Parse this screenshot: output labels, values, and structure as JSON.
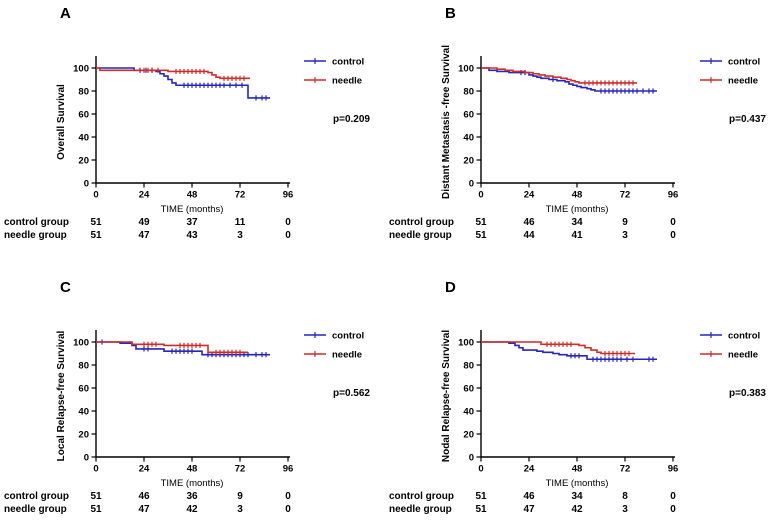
{
  "figure": {
    "background": "#ffffff",
    "colors": {
      "control": "#2626b8",
      "needle": "#cb2f2b",
      "axis": "#000000",
      "x_label_text": "#6a6a6a",
      "text": "#000000"
    }
  },
  "chart_data": [
    {
      "type": "line",
      "panel_letter": "A",
      "ylabel": "Overall Survival",
      "xlabel": "TIME (months)",
      "xlim": [
        0,
        96
      ],
      "ylim": [
        0,
        100
      ],
      "xticks": [
        0,
        24,
        48,
        72,
        96
      ],
      "yticks": [
        0,
        20,
        40,
        60,
        80,
        100
      ],
      "p_value": "p=0.209",
      "grid": false,
      "legend_position": "right",
      "legend_offset_x": 0,
      "series": [
        {
          "name": "control",
          "color_key": "control",
          "steps": [
            [
              0,
              100
            ],
            [
              19,
              98
            ],
            [
              30,
              97
            ],
            [
              32,
              95
            ],
            [
              34,
              93
            ],
            [
              36,
              90
            ],
            [
              38,
              87
            ],
            [
              40,
              85
            ],
            [
              76,
              74
            ],
            [
              87,
              74
            ]
          ],
          "censor_times": [
            22,
            25,
            28,
            44,
            46,
            48,
            50,
            52,
            54,
            56,
            58,
            60,
            62,
            64,
            67,
            70,
            73,
            80,
            83,
            85
          ]
        },
        {
          "name": "needle",
          "color_key": "needle",
          "steps": [
            [
              0,
              100
            ],
            [
              2,
              98
            ],
            [
              36,
              97
            ],
            [
              56,
              96
            ],
            [
              58,
              94
            ],
            [
              60,
              92
            ],
            [
              62,
              91
            ],
            [
              77,
              91
            ]
          ],
          "censor_times": [
            24,
            26,
            28,
            31,
            40,
            42,
            44,
            46,
            48,
            50,
            52,
            54,
            64,
            66,
            68,
            70,
            72,
            74
          ]
        }
      ],
      "at_risk_rows": [
        {
          "label": "control group",
          "values": [
            "51",
            "49",
            "37",
            "11",
            "0"
          ]
        },
        {
          "label": "needle group",
          "values": [
            "51",
            "47",
            "43",
            "3",
            "0"
          ]
        }
      ]
    },
    {
      "type": "line",
      "panel_letter": "B",
      "ylabel": "Distant Metastasis -free Survival",
      "xlabel": "TIME (months)",
      "xlim": [
        0,
        96
      ],
      "ylim": [
        0,
        100
      ],
      "xticks": [
        0,
        24,
        48,
        72,
        96
      ],
      "yticks": [
        0,
        20,
        40,
        60,
        80,
        100
      ],
      "p_value": "p=0.437",
      "grid": false,
      "legend_position": "right",
      "legend_offset_x": 11,
      "series": [
        {
          "name": "control",
          "color_key": "control",
          "steps": [
            [
              0,
              100
            ],
            [
              4,
              98
            ],
            [
              8,
              97
            ],
            [
              14,
              96
            ],
            [
              24,
              94
            ],
            [
              26,
              93
            ],
            [
              28,
              92
            ],
            [
              30,
              91
            ],
            [
              34,
              90
            ],
            [
              38,
              89
            ],
            [
              42,
              88
            ],
            [
              44,
              86
            ],
            [
              46,
              85
            ],
            [
              48,
              84
            ],
            [
              50,
              83
            ],
            [
              53,
              82
            ],
            [
              55,
              81
            ],
            [
              57,
              80
            ],
            [
              88,
              80
            ]
          ],
          "censor_times": [
            20,
            22,
            36,
            60,
            62,
            64,
            66,
            68,
            70,
            72,
            74,
            76,
            78,
            81,
            84,
            86
          ]
        },
        {
          "name": "needle",
          "color_key": "needle",
          "steps": [
            [
              0,
              100
            ],
            [
              8,
              99
            ],
            [
              12,
              98
            ],
            [
              16,
              97
            ],
            [
              22,
              96
            ],
            [
              26,
              95
            ],
            [
              29,
              94
            ],
            [
              32,
              93
            ],
            [
              36,
              92
            ],
            [
              40,
              91
            ],
            [
              43,
              90
            ],
            [
              45,
              89
            ],
            [
              47,
              88
            ],
            [
              49,
              87
            ],
            [
              78,
              87
            ]
          ],
          "censor_times": [
            52,
            54,
            56,
            58,
            60,
            62,
            64,
            66,
            68,
            70,
            72,
            74,
            76
          ]
        }
      ],
      "at_risk_rows": [
        {
          "label": "control group",
          "values": [
            "51",
            "46",
            "34",
            "9",
            "0"
          ]
        },
        {
          "label": "needle group",
          "values": [
            "51",
            "44",
            "41",
            "3",
            "0"
          ]
        }
      ]
    },
    {
      "type": "line",
      "panel_letter": "C",
      "ylabel": "Local Relapse-free Survival",
      "xlabel": "TIME (months)",
      "xlim": [
        0,
        96
      ],
      "ylim": [
        0,
        100
      ],
      "xticks": [
        0,
        24,
        48,
        72,
        96
      ],
      "yticks": [
        0,
        20,
        40,
        60,
        80,
        100
      ],
      "p_value": "p=0.562",
      "grid": false,
      "legend_position": "right",
      "legend_offset_x": 0,
      "series": [
        {
          "name": "control",
          "color_key": "control",
          "steps": [
            [
              0,
              100
            ],
            [
              12,
              99
            ],
            [
              18,
              97
            ],
            [
              20,
              94
            ],
            [
              34,
              92
            ],
            [
              53,
              89
            ],
            [
              87,
              89
            ]
          ],
          "censor_times": [
            3,
            24,
            26,
            38,
            40,
            42,
            44,
            46,
            48,
            56,
            58,
            60,
            62,
            64,
            66,
            68,
            70,
            72,
            74,
            76,
            80,
            83,
            85
          ]
        },
        {
          "name": "needle",
          "color_key": "needle",
          "steps": [
            [
              0,
              100
            ],
            [
              18,
              98
            ],
            [
              34,
              97
            ],
            [
              56,
              91
            ],
            [
              76,
              91
            ]
          ],
          "censor_times": [
            24,
            26,
            28,
            30,
            42,
            44,
            46,
            48,
            50,
            52,
            60,
            62,
            64,
            66,
            68,
            70,
            72
          ]
        }
      ],
      "at_risk_rows": [
        {
          "label": "control group",
          "values": [
            "51",
            "46",
            "36",
            "9",
            "0"
          ]
        },
        {
          "label": "needle group",
          "values": [
            "51",
            "47",
            "42",
            "3",
            "0"
          ]
        }
      ]
    },
    {
      "type": "line",
      "panel_letter": "D",
      "ylabel": "Nodal Relapse-free Survival",
      "xlabel": "TIME (months)",
      "xlim": [
        0,
        96
      ],
      "ylim": [
        0,
        100
      ],
      "xticks": [
        0,
        24,
        48,
        72,
        96
      ],
      "yticks": [
        0,
        20,
        40,
        60,
        80,
        100
      ],
      "p_value": "p=0.383",
      "grid": false,
      "legend_position": "right",
      "legend_offset_x": 11,
      "series": [
        {
          "name": "control",
          "color_key": "control",
          "steps": [
            [
              0,
              100
            ],
            [
              14,
              99
            ],
            [
              17,
              97
            ],
            [
              19,
              95
            ],
            [
              21,
              93
            ],
            [
              28,
              92
            ],
            [
              31,
              91
            ],
            [
              36,
              90
            ],
            [
              39,
              89
            ],
            [
              43,
              88
            ],
            [
              53,
              85
            ],
            [
              88,
              85
            ]
          ],
          "censor_times": [
            45,
            47,
            49,
            56,
            58,
            60,
            62,
            64,
            66,
            68,
            70,
            73,
            76,
            84,
            86
          ]
        },
        {
          "name": "needle",
          "color_key": "needle",
          "steps": [
            [
              0,
              100
            ],
            [
              30,
              98
            ],
            [
              49,
              97
            ],
            [
              52,
              95
            ],
            [
              55,
              93
            ],
            [
              58,
              91
            ],
            [
              60,
              90
            ],
            [
              77,
              90
            ]
          ],
          "censor_times": [
            33,
            35,
            37,
            39,
            41,
            43,
            45,
            62,
            64,
            66,
            68,
            70,
            72,
            74
          ]
        }
      ],
      "at_risk_rows": [
        {
          "label": "control group",
          "values": [
            "51",
            "46",
            "34",
            "8",
            "0"
          ]
        },
        {
          "label": "needle group",
          "values": [
            "51",
            "47",
            "42",
            "3",
            "0"
          ]
        }
      ]
    }
  ]
}
